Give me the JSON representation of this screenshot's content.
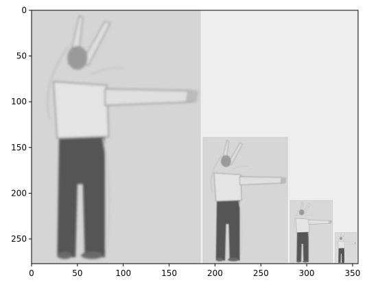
{
  "chart_data": {
    "type": "image",
    "title": "",
    "xlabel": "",
    "ylabel": "",
    "xlim": [
      0,
      356
    ],
    "ylim": [
      277,
      0
    ],
    "x_ticks": [
      0,
      50,
      100,
      150,
      200,
      250,
      300,
      350
    ],
    "y_ticks": [
      0,
      50,
      100,
      150,
      200,
      250
    ],
    "grid": false,
    "colormap": "gray",
    "background_value": "#eeeeee",
    "pyramid_levels": [
      {
        "name": "level-0",
        "x0": 0,
        "y0": 0,
        "width": 184,
        "height": 277,
        "scale": 1.0,
        "fill": "#d5d5d5"
      },
      {
        "name": "level-1",
        "x0": 187,
        "y0": 139,
        "width": 92,
        "height": 138,
        "scale": 0.5,
        "fill": "#d6d6d6"
      },
      {
        "name": "level-2",
        "x0": 282,
        "y0": 208,
        "width": 46,
        "height": 69,
        "scale": 0.25,
        "fill": "#d8d8d8"
      },
      {
        "name": "level-3",
        "x0": 331,
        "y0": 243,
        "width": 23,
        "height": 34,
        "scale": 0.125,
        "fill": "#dadada"
      }
    ],
    "subject": "dancer with arms outstretched (image pyramid)"
  }
}
